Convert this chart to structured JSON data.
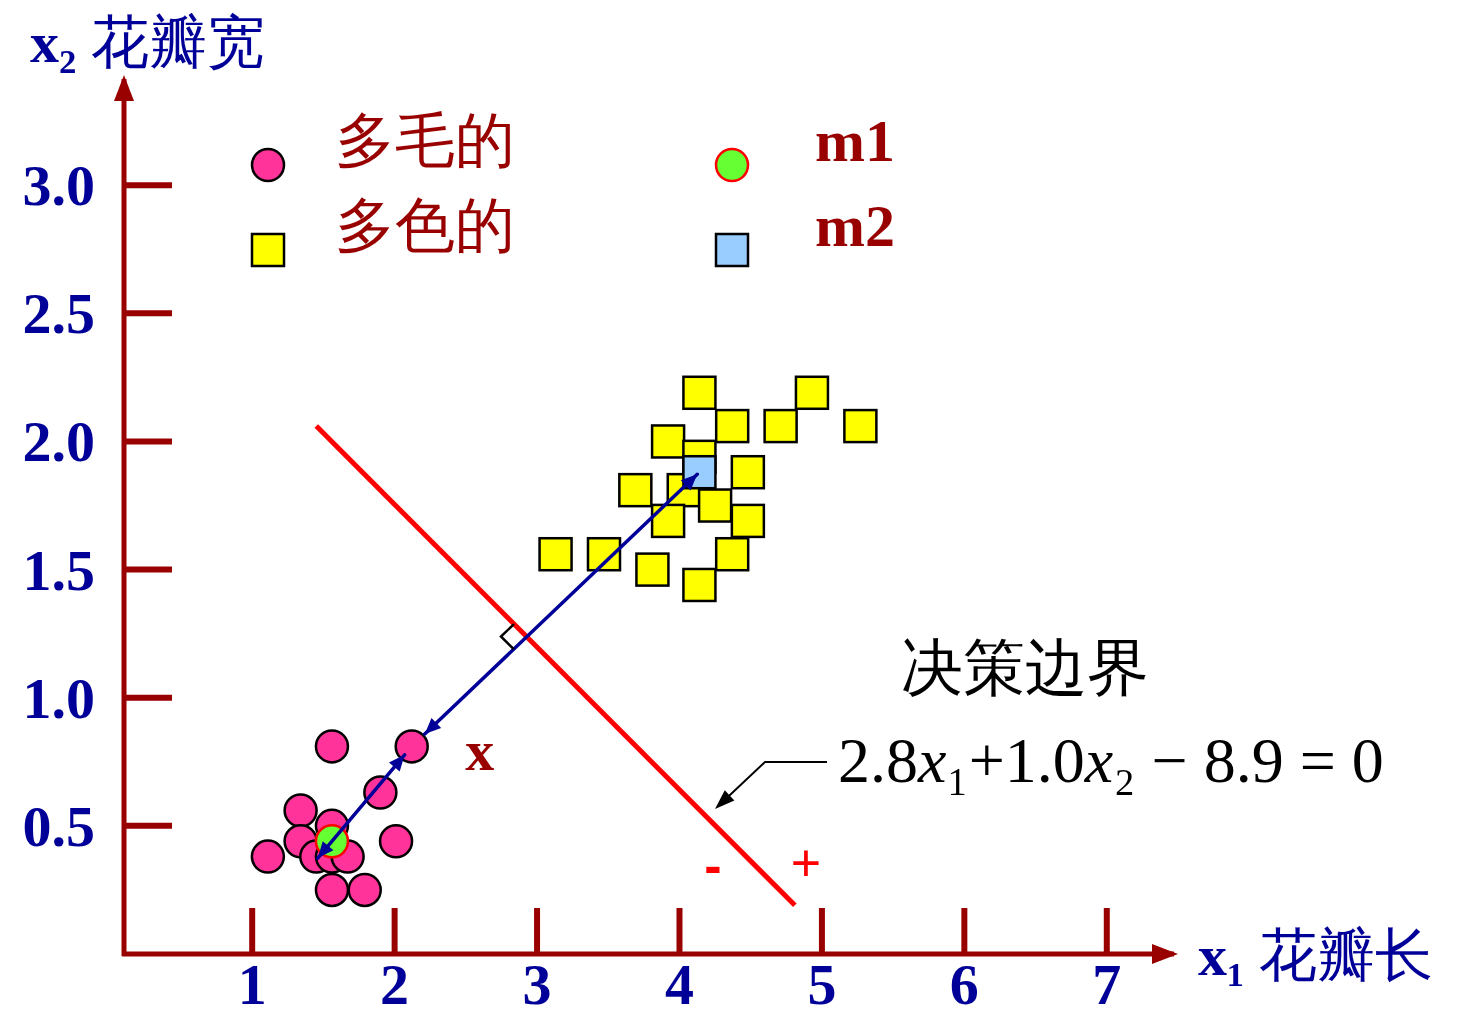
{
  "chart_data": {
    "type": "scatter",
    "xlabel": "x₁ 花瓣长",
    "ylabel": "x₂ 花瓣宽",
    "annotations": [
      "决策边界",
      "2.8x₁+1.0x₂ − 8.9 = 0",
      {
        "text": "x",
        "x": 2.12,
        "y": 0.81
      },
      "-",
      "+"
    ],
    "xlim": [
      0.1,
      7.5
    ],
    "ylim": [
      0,
      3.43
    ],
    "xticks": [
      1,
      2,
      3,
      4,
      5,
      6,
      7
    ],
    "yticks": [
      0.5,
      {
        "value": 1,
        "label": "1.0"
      },
      1.5,
      {
        "value": 2,
        "label": "2.0"
      },
      2.5,
      {
        "value": 3,
        "label": "3.0"
      }
    ],
    "grid": false,
    "legend": "top left",
    "series": [
      {
        "name": "多毛的",
        "marker": "circle",
        "color": "#ff3399",
        "x": [
          1.56,
          2.12,
          1.9,
          1.34,
          1.56,
          1.34,
          2.01,
          1.11,
          1.45,
          1.56,
          1.67,
          1.56,
          1.79
        ],
        "values": [
          0.81,
          0.81,
          0.63,
          0.56,
          0.5,
          0.44,
          0.44,
          0.38,
          0.38,
          0.38,
          0.38,
          0.25,
          0.25
        ]
      },
      {
        "name": "多色的",
        "marker": "square",
        "color": "#ffff00",
        "x": [
          4.14,
          4.93,
          4.37,
          4.71,
          5.27,
          3.92,
          4.14,
          4.48,
          3.69,
          4.03,
          4.25,
          3.92,
          4.48,
          3.13,
          3.47,
          4.37,
          3.81,
          4.14
        ],
        "values": [
          2.19,
          2.19,
          2.06,
          2.06,
          2.06,
          2.0,
          1.94,
          1.88,
          1.81,
          1.81,
          1.75,
          1.69,
          1.69,
          1.56,
          1.56,
          1.56,
          1.5,
          1.44
        ]
      },
      {
        "name": "m1",
        "marker": "circle",
        "color": "#66ff33",
        "x": [
          1.56
        ],
        "values": [
          0.44
        ]
      },
      {
        "name": "m2",
        "marker": "square",
        "color": "#99ccff",
        "x": [
          4.14
        ],
        "values": [
          1.88
        ]
      },
      {
        "type": "line",
        "marker": "none",
        "color": "#ff0000",
        "x": [
          1.45,
          4.81
        ],
        "values": [
          2.06,
          0.19
        ]
      }
    ]
  }
}
